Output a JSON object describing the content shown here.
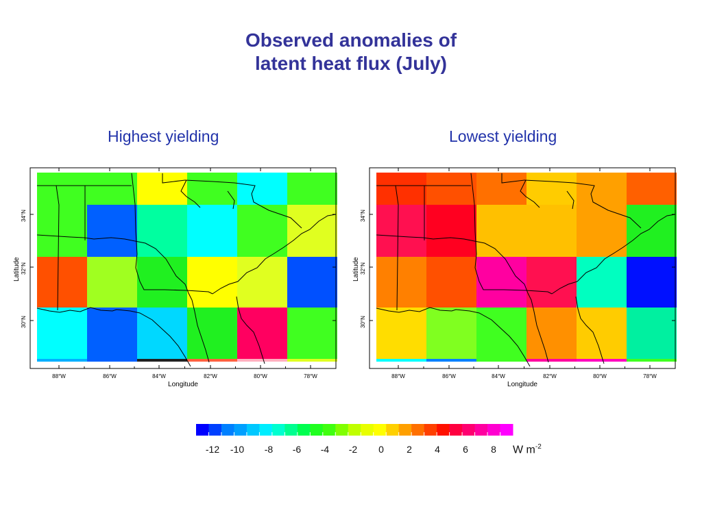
{
  "title": {
    "line1": "Observed anomalies of",
    "line2": "latent heat flux (July)"
  },
  "panels": [
    {
      "subtitle": "Highest yielding",
      "x_ticks": [
        "88°W",
        "86°W",
        "84°W",
        "82°W",
        "80°W",
        "78°W"
      ],
      "y_ticks": [
        "34°N",
        "32°N",
        "30°N"
      ],
      "xlabel": "Longitude",
      "ylabel": "Latitude",
      "grid_colors": [
        [
          "#40ff20",
          "#40ff20",
          "#ffff00",
          "#40ff20",
          "#00ffff",
          "#40ff20"
        ],
        [
          "#40ff20",
          "#0060ff",
          "#00ffa0",
          "#00ffff",
          "#40ff20",
          "#e0ff20"
        ],
        [
          "#ff5000",
          "#a0ff20",
          "#20f020",
          "#ffff00",
          "#e0ff20",
          "#0050ff"
        ],
        [
          "#00ffff",
          "#0060ff",
          "#00d8ff",
          "#20f020",
          "#ff0060",
          "#40ff20"
        ]
      ],
      "bottom_strip": [
        "#00b0ff",
        "#0060ff",
        "#202020",
        "#ff6040",
        "#ffb0c0",
        "#e0ff20"
      ]
    },
    {
      "subtitle": "Lowest yielding",
      "x_ticks": [
        "88°W",
        "86°W",
        "84°W",
        "82°W",
        "80°W",
        "78°W"
      ],
      "y_ticks": [
        "34°N",
        "32°N",
        "30°N"
      ],
      "xlabel": "Longitude",
      "ylabel": "Latitude",
      "grid_colors": [
        [
          "#ff3000",
          "#ff5000",
          "#ff7000",
          "#ffcc00",
          "#ffa000",
          "#ff6000"
        ],
        [
          "#ff1050",
          "#ff0020",
          "#ffc000",
          "#ffc000",
          "#ffa000",
          "#20f020"
        ],
        [
          "#ff8000",
          "#ff5000",
          "#ff00a0",
          "#ff1050",
          "#00ffc0",
          "#0010ff"
        ],
        [
          "#ffdd00",
          "#80ff20",
          "#40ff20",
          "#ff9000",
          "#ffcc00",
          "#00f0a0"
        ]
      ],
      "bottom_strip": [
        "#00ffff",
        "#0080ff",
        "#40ff20",
        "#ff00a0",
        "#ff00c0",
        "#40ff20"
      ]
    }
  ],
  "colorbar": {
    "colors": [
      "#0000ff",
      "#0040ff",
      "#0080ff",
      "#00a0ff",
      "#00c8ff",
      "#00eeff",
      "#00ffd0",
      "#00ff90",
      "#00ff50",
      "#20ff20",
      "#40ff10",
      "#80ff00",
      "#c0ff00",
      "#e8ff00",
      "#ffff00",
      "#ffd000",
      "#ffa000",
      "#ff7000",
      "#ff4000",
      "#ff1000",
      "#ff0040",
      "#ff0070",
      "#ff00a0",
      "#ff00d0",
      "#ff00ff"
    ],
    "ticks": [
      {
        "label": "-12",
        "value": -12
      },
      {
        "label": "-10",
        "value": -10
      },
      {
        "label": "-8",
        "value": -8
      },
      {
        "label": "-6",
        "value": -6
      },
      {
        "label": "-4",
        "value": -4
      },
      {
        "label": "-2",
        "value": -2
      },
      {
        "label": "0",
        "value": 0
      },
      {
        "label": "2",
        "value": 2
      },
      {
        "label": "4",
        "value": 4
      },
      {
        "label": "6",
        "value": 6
      },
      {
        "label": "8",
        "value": 8
      }
    ],
    "unit_base": "W m",
    "unit_exp": "-2"
  }
}
